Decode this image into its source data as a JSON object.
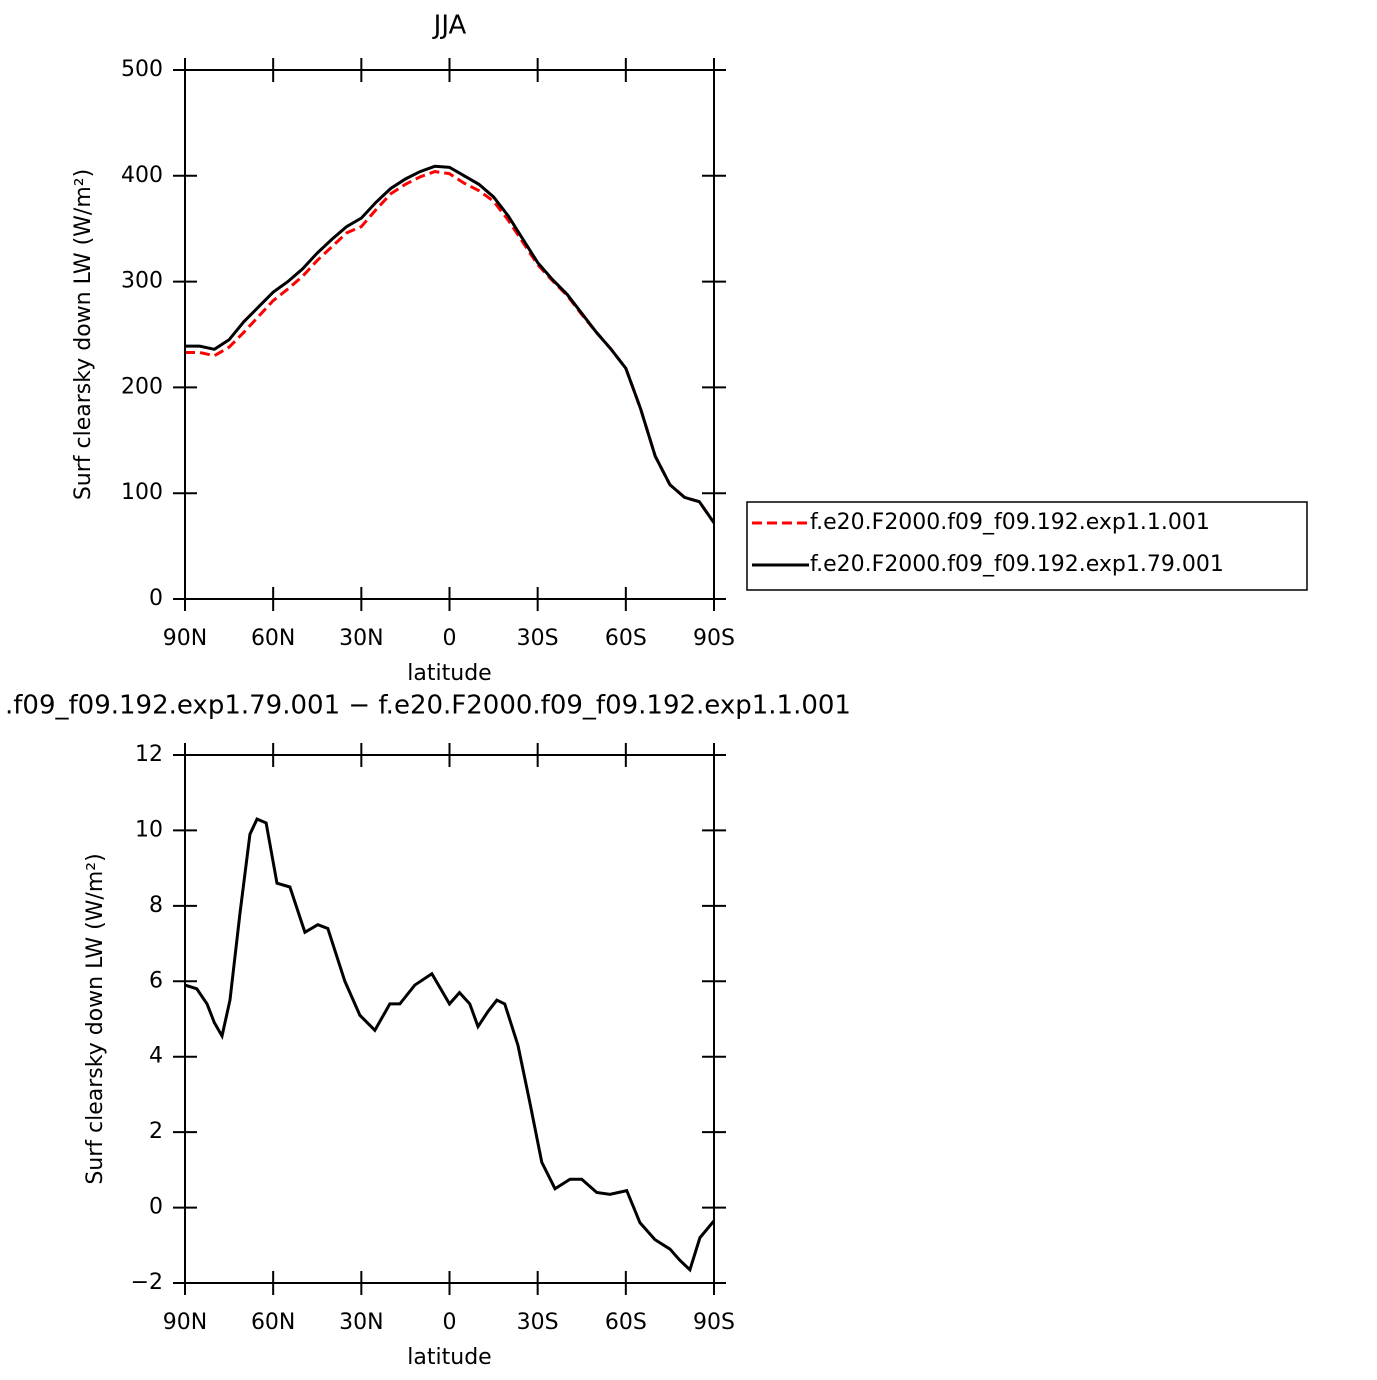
{
  "chart_data": [
    {
      "type": "line",
      "title": "JJA",
      "xlabel": "latitude",
      "ylabel": "Surf clearsky down LW (W/m²)",
      "x": [
        90,
        85,
        80,
        75,
        70,
        65,
        60,
        55,
        50,
        45,
        40,
        35,
        30,
        25,
        20,
        15,
        10,
        5,
        0,
        -5,
        -10,
        -15,
        -20,
        -25,
        -30,
        -35,
        -40,
        -45,
        -50,
        -55,
        -60,
        -65,
        -70,
        -75,
        -80,
        -85,
        -90
      ],
      "series": [
        {
          "name": "f.e20.F2000.f09_f09.192.exp1.1.001",
          "color": "#ff0000",
          "line_style": "dashed",
          "values": [
            233,
            233,
            230,
            238,
            252,
            267,
            282,
            293,
            305,
            320,
            333,
            346,
            352,
            368,
            383,
            392,
            399,
            404,
            402,
            393,
            386,
            376,
            358,
            337,
            316,
            301,
            287,
            269,
            252,
            236,
            218,
            180,
            135,
            108,
            96,
            92,
            72
          ]
        },
        {
          "name": "f.e20.F2000.f09_f09.192.exp1.79.001",
          "color": "#000000",
          "line_style": "solid",
          "values": [
            239,
            239,
            236,
            245,
            262,
            276,
            290,
            300,
            312,
            327,
            340,
            352,
            360,
            375,
            388,
            397,
            404,
            409,
            408,
            400,
            392,
            380,
            362,
            340,
            318,
            302,
            288,
            270,
            252,
            236,
            218,
            180,
            135,
            108,
            96,
            92,
            72
          ]
        }
      ],
      "xlim": [
        90,
        -90
      ],
      "xticks": [
        {
          "value": 90,
          "label": "90N"
        },
        {
          "value": 60,
          "label": "60N"
        },
        {
          "value": 30,
          "label": "30N"
        },
        0,
        {
          "value": -30,
          "label": "30S"
        },
        {
          "value": -60,
          "label": "60S"
        },
        {
          "value": -90,
          "label": "90S"
        }
      ],
      "ylim": [
        0,
        500
      ],
      "yticks": [
        0,
        100,
        200,
        300,
        400,
        500
      ],
      "legend": "outside right"
    },
    {
      "type": "line",
      "title": ".f09_f09.192.exp1.79.001 − f.e20.F2000.f09_f09.192.exp1.1.001",
      "xlabel": "latitude",
      "ylabel": "Surf clearsky down LW (W/m²)",
      "x": [
        90,
        86,
        82.5,
        80,
        77.4,
        74.7,
        71.3,
        67.9,
        65.5,
        62.4,
        58.7,
        54.3,
        49.2,
        44.8,
        41.4,
        35.6,
        30.5,
        25.4,
        20.3,
        16.9,
        11.8,
        6,
        0,
        -3.4,
        -6.9,
        -9.7,
        -13.1,
        -16.1,
        -18.8,
        -23.3,
        -27.3,
        -31.4,
        -35.9,
        -41,
        -45,
        -50.1,
        -54.6,
        -60.3,
        -64.8,
        -69.9,
        -75,
        -78.4,
        -81.8,
        -85.2,
        -90
      ],
      "series": [
        {
          "color": "#000000",
          "line_style": "solid",
          "values": [
            5.9,
            5.8,
            5.4,
            4.9,
            4.55,
            5.5,
            7.8,
            9.9,
            10.3,
            10.2,
            8.6,
            8.5,
            7.3,
            7.5,
            7.4,
            6.0,
            5.1,
            4.7,
            5.4,
            5.4,
            5.9,
            6.2,
            5.4,
            5.7,
            5.4,
            4.8,
            5.2,
            5.5,
            5.4,
            4.3,
            2.8,
            1.2,
            0.5,
            0.75,
            0.75,
            0.4,
            0.35,
            0.45,
            -0.4,
            -0.85,
            -1.1,
            -1.4,
            -1.65,
            -0.8,
            -0.35
          ]
        }
      ],
      "xlim": [
        90,
        -90
      ],
      "xticks": [
        {
          "value": 90,
          "label": "90N"
        },
        {
          "value": 60,
          "label": "60N"
        },
        {
          "value": 30,
          "label": "30N"
        },
        0,
        {
          "value": -30,
          "label": "30S"
        },
        {
          "value": -60,
          "label": "60S"
        },
        {
          "value": -90,
          "label": "90S"
        }
      ],
      "ylim": [
        -2,
        12
      ],
      "yticks": [
        {
          "value": -2,
          "label": "−2"
        },
        0,
        2,
        4,
        6,
        8,
        10,
        12
      ]
    }
  ]
}
